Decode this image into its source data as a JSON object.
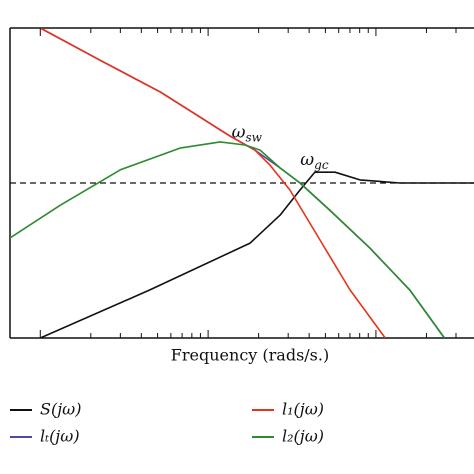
{
  "chart_data": {
    "type": "line",
    "x_label": "Frequency (rads/s.)",
    "x_log": true,
    "xlim": [
      0.66,
      384
    ],
    "ylim": [
      -40,
      40
    ],
    "xticks": [
      1,
      2,
      3,
      4,
      5,
      6,
      7,
      8,
      9,
      10,
      20,
      30,
      40,
      50,
      60,
      70,
      80,
      90,
      100,
      200,
      300
    ],
    "reference_line": 0,
    "annotations": [
      {
        "text": "ω",
        "sub": "sw",
        "x": 17,
        "y": 13
      },
      {
        "text": "ω",
        "sub": "gc",
        "x": 43,
        "y": 6
      }
    ],
    "series": [
      {
        "name": "S(jω)",
        "color": "#111111",
        "x": [
          1,
          4.5,
          17.8,
          26.8,
          35.3,
          43.2,
          57,
          80.4,
          139,
          384
        ],
        "values": [
          -40,
          -27.6,
          -15.5,
          -8.3,
          -1.8,
          2.8,
          2.8,
          0.8,
          0,
          0
        ]
      },
      {
        "name": "lₜ(jω)",
        "color": "#4a4aa8",
        "x": [
          1,
          2.27,
          5.18,
          8.95,
          13.5,
          19,
          26.8,
          35.3,
          53,
          92,
          159,
          256
        ],
        "values": [
          40,
          31.7,
          23.5,
          17,
          12.1,
          8.5,
          3.9,
          0,
          -7,
          -16.8,
          -27.6,
          -40
        ]
      },
      {
        "name": "l₁(jω)",
        "color": "#e8321e",
        "x": [
          1,
          2.27,
          5.18,
          8.95,
          13.5,
          19,
          23.4,
          30.7,
          46.4,
          70.1,
          113.5
        ],
        "values": [
          40,
          31.7,
          23.5,
          17,
          12.1,
          8.5,
          4.6,
          -1.8,
          -14.7,
          -27.6,
          -40
        ]
      },
      {
        "name": "l₂(jω)",
        "color": "#2e8b2e",
        "x": [
          0.66,
          1.32,
          3,
          6.8,
          11.8,
          16.6,
          20.4,
          26.8,
          35.3,
          53,
          92,
          159,
          256
        ],
        "values": [
          -14.2,
          -5.7,
          3.4,
          9,
          10.6,
          9.8,
          8.5,
          3.9,
          0,
          -7,
          -16.8,
          -27.6,
          -40
        ]
      }
    ]
  }
}
